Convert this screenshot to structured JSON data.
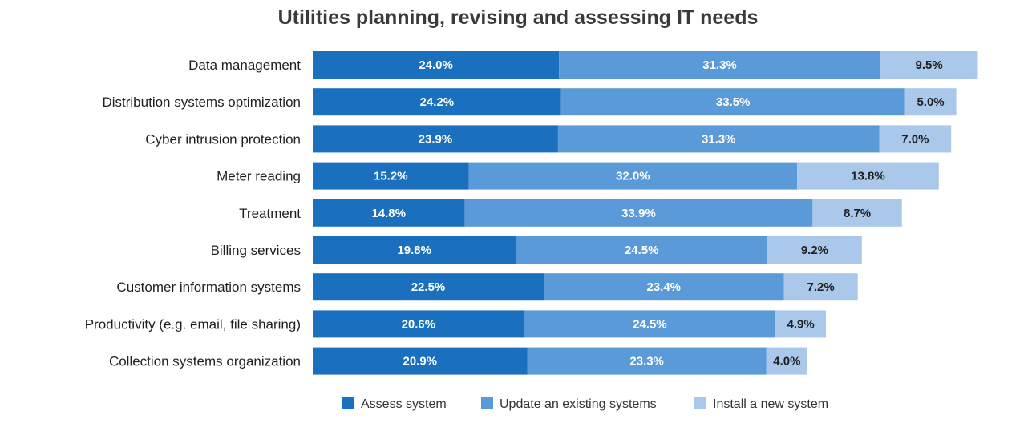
{
  "chart_data": {
    "type": "bar",
    "orientation": "horizontal",
    "stacked": true,
    "title": "Utilities planning, revising and assessing IT needs",
    "categories": [
      "Data management",
      "Distribution systems optimization",
      "Cyber intrusion protection",
      "Meter reading",
      "Treatment",
      "Billing services",
      "Customer information systems",
      "Productivity (e.g. email, file sharing)",
      "Collection systems organization"
    ],
    "series": [
      {
        "name": "Assess system",
        "color": "#1a6fbf",
        "label_color": "#ffffff",
        "values": [
          24.0,
          24.2,
          23.9,
          15.2,
          14.8,
          19.8,
          22.5,
          20.6,
          20.9
        ],
        "labels": [
          "24.0%",
          "24.2%",
          "23.9%",
          "15.2%",
          "14.8%",
          "19.8%",
          "22.5%",
          "20.6%",
          "20.9%"
        ]
      },
      {
        "name": "Update an existing systems",
        "color": "#5b9ad8",
        "label_color": "#ffffff",
        "values": [
          31.3,
          33.5,
          31.3,
          32.0,
          33.9,
          24.5,
          23.4,
          24.5,
          23.3
        ],
        "labels": [
          "31.3%",
          "33.5%",
          "31.3%",
          "32.0%",
          "33.9%",
          "24.5%",
          "23.4%",
          "24.5%",
          "23.3%"
        ]
      },
      {
        "name": "Install a new system",
        "color": "#a9c8ea",
        "label_color": "#1f1f1f",
        "values": [
          9.5,
          5.0,
          7.0,
          13.8,
          8.7,
          9.2,
          7.2,
          4.9,
          4.0
        ],
        "labels": [
          "9.5%",
          "5.0%",
          "7.0%",
          "13.8%",
          "8.7%",
          "9.2%",
          "7.2%",
          "4.9%",
          "4.0%"
        ]
      }
    ],
    "legend_position": "bottom",
    "grid": false,
    "xlim": [
      0,
      65
    ]
  }
}
